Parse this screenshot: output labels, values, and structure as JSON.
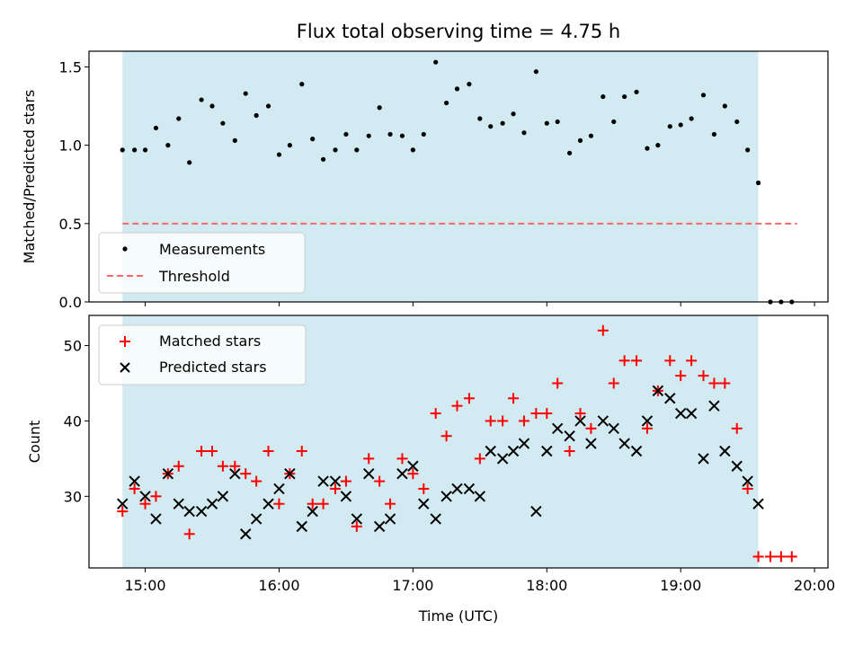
{
  "title": "Flux total observing time = 4.75 h",
  "colors": {
    "observing_band": "#add8e6",
    "measurement": "#000000",
    "threshold": "#ff6666",
    "matched": "#ff0000",
    "predicted": "#000000"
  },
  "chart_data": [
    {
      "type": "scatter",
      "ylabel": "Matched/Predicted stars",
      "xlim": [
        14.58,
        20.1
      ],
      "ylim": [
        0,
        1.6
      ],
      "yticks": [
        "0.0",
        "0.5",
        "1.0",
        "1.5"
      ],
      "shaded_interval": [
        14.83,
        19.58
      ],
      "legend": {
        "placement": "lower-left",
        "entries": [
          "Measurements",
          "Threshold"
        ]
      },
      "threshold": {
        "name": "Threshold",
        "y": 0.5,
        "x_range": [
          14.83,
          19.87
        ]
      },
      "series": [
        {
          "name": "Measurements",
          "x": [
            14.83,
            14.92,
            15.0,
            15.08,
            15.17,
            15.25,
            15.33,
            15.42,
            15.5,
            15.58,
            15.67,
            15.75,
            15.83,
            15.92,
            16.0,
            16.08,
            16.17,
            16.25,
            16.33,
            16.42,
            16.5,
            16.58,
            16.67,
            16.75,
            16.83,
            16.92,
            17.0,
            17.08,
            17.17,
            17.25,
            17.33,
            17.42,
            17.5,
            17.58,
            17.67,
            17.75,
            17.83,
            17.92,
            18.0,
            18.08,
            18.17,
            18.25,
            18.33,
            18.42,
            18.5,
            18.58,
            18.67,
            18.75,
            18.83,
            18.92,
            19.0,
            19.08,
            19.17,
            19.25,
            19.33,
            19.42,
            19.5,
            19.58,
            19.67,
            19.75,
            19.83
          ],
          "y": [
            0.97,
            0.97,
            0.97,
            1.11,
            1.0,
            1.17,
            0.89,
            1.29,
            1.25,
            1.14,
            1.03,
            1.33,
            1.19,
            1.25,
            0.94,
            1.0,
            1.39,
            1.04,
            0.91,
            0.97,
            1.07,
            0.97,
            1.06,
            1.24,
            1.07,
            1.06,
            0.97,
            1.07,
            1.53,
            1.27,
            1.36,
            1.39,
            1.17,
            1.12,
            1.14,
            1.2,
            1.08,
            1.47,
            1.14,
            1.15,
            0.95,
            1.03,
            1.06,
            1.31,
            1.15,
            1.31,
            1.34,
            0.98,
            1.0,
            1.12,
            1.13,
            1.17,
            1.32,
            1.07,
            1.25,
            1.15,
            0.97,
            0.76,
            0.0,
            0.0,
            0.0
          ]
        }
      ]
    },
    {
      "type": "scatter",
      "ylabel": "Count",
      "xlabel": "Time (UTC)",
      "xlim": [
        14.58,
        20.1
      ],
      "ylim": [
        20.5,
        54
      ],
      "yticks": [
        "30",
        "40",
        "50"
      ],
      "xticks": [
        "15:00",
        "16:00",
        "17:00",
        "18:00",
        "19:00",
        "20:00"
      ],
      "shaded_interval": [
        14.83,
        19.58
      ],
      "legend": {
        "placement": "upper-left",
        "entries": [
          "Matched stars",
          "Predicted stars"
        ]
      },
      "series": [
        {
          "name": "Matched stars",
          "x": [
            14.83,
            14.92,
            15.0,
            15.08,
            15.17,
            15.25,
            15.33,
            15.42,
            15.5,
            15.58,
            15.67,
            15.75,
            15.83,
            15.92,
            16.0,
            16.08,
            16.17,
            16.25,
            16.33,
            16.42,
            16.5,
            16.58,
            16.67,
            16.75,
            16.83,
            16.92,
            17.0,
            17.08,
            17.17,
            17.25,
            17.33,
            17.42,
            17.5,
            17.58,
            17.67,
            17.75,
            17.83,
            17.92,
            18.0,
            18.08,
            18.17,
            18.25,
            18.33,
            18.42,
            18.5,
            18.58,
            18.67,
            18.75,
            18.83,
            18.92,
            19.0,
            19.08,
            19.17,
            19.25,
            19.33,
            19.42,
            19.5,
            19.58,
            19.67,
            19.75,
            19.83
          ],
          "y": [
            28,
            31,
            29,
            30,
            33,
            34,
            25,
            36,
            36,
            34,
            34,
            33,
            32,
            36,
            29,
            33,
            36,
            29,
            29,
            31,
            32,
            26,
            35,
            32,
            29,
            35,
            33,
            31,
            41,
            38,
            42,
            43,
            35,
            40,
            40,
            43,
            40,
            41,
            41,
            45,
            36,
            41,
            39,
            52,
            45,
            48,
            48,
            39,
            44,
            48,
            46,
            48,
            46,
            45,
            45,
            39,
            31,
            22,
            22,
            22,
            22
          ]
        },
        {
          "name": "Predicted stars",
          "x": [
            14.83,
            14.92,
            15.0,
            15.08,
            15.17,
            15.25,
            15.33,
            15.42,
            15.5,
            15.58,
            15.67,
            15.75,
            15.83,
            15.92,
            16.0,
            16.08,
            16.17,
            16.25,
            16.33,
            16.42,
            16.5,
            16.58,
            16.67,
            16.75,
            16.83,
            16.92,
            17.0,
            17.08,
            17.17,
            17.25,
            17.33,
            17.42,
            17.5,
            17.58,
            17.67,
            17.75,
            17.83,
            17.92,
            18.0,
            18.08,
            18.17,
            18.25,
            18.33,
            18.42,
            18.5,
            18.58,
            18.67,
            18.75,
            18.83,
            18.92,
            19.0,
            19.08,
            19.17,
            19.25,
            19.33,
            19.42,
            19.5,
            19.58
          ],
          "y": [
            29,
            32,
            30,
            27,
            33,
            29,
            28,
            28,
            29,
            30,
            33,
            25,
            27,
            29,
            31,
            33,
            26,
            28,
            32,
            32,
            30,
            27,
            33,
            26,
            27,
            33,
            34,
            29,
            27,
            30,
            31,
            31,
            30,
            36,
            35,
            36,
            37,
            28,
            36,
            39,
            38,
            40,
            37,
            40,
            39,
            37,
            36,
            40,
            44,
            43,
            41,
            41,
            35,
            42,
            36,
            34,
            32,
            29
          ]
        }
      ]
    }
  ]
}
